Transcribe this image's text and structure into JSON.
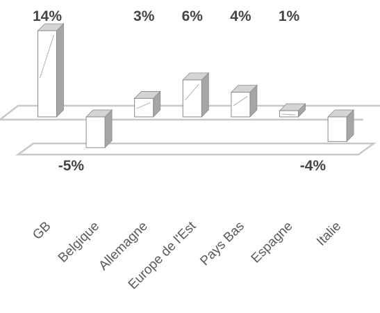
{
  "chart_data": {
    "type": "bar",
    "style": "3d-column",
    "title": "",
    "xlabel": "",
    "ylabel": "",
    "categories": [
      "GB",
      "Belgique",
      "Allemagne",
      "Europe de l'Est",
      "Pays Bas",
      "Espagne",
      "Italie"
    ],
    "values": [
      14,
      -5,
      3,
      6,
      4,
      1,
      -4
    ],
    "data_labels": [
      "14%",
      "-5%",
      "3%",
      "6%",
      "4%",
      "1%",
      "-4%"
    ],
    "grid": false,
    "legend": "none",
    "colors": {
      "bar_face": "#ffffff",
      "bar_side": "#a6a6a6",
      "bar_top": "#d4d4d4",
      "floor_line": "#c8c8c8",
      "label_text": "#444444",
      "tick_text": "#5a5a5a"
    }
  }
}
